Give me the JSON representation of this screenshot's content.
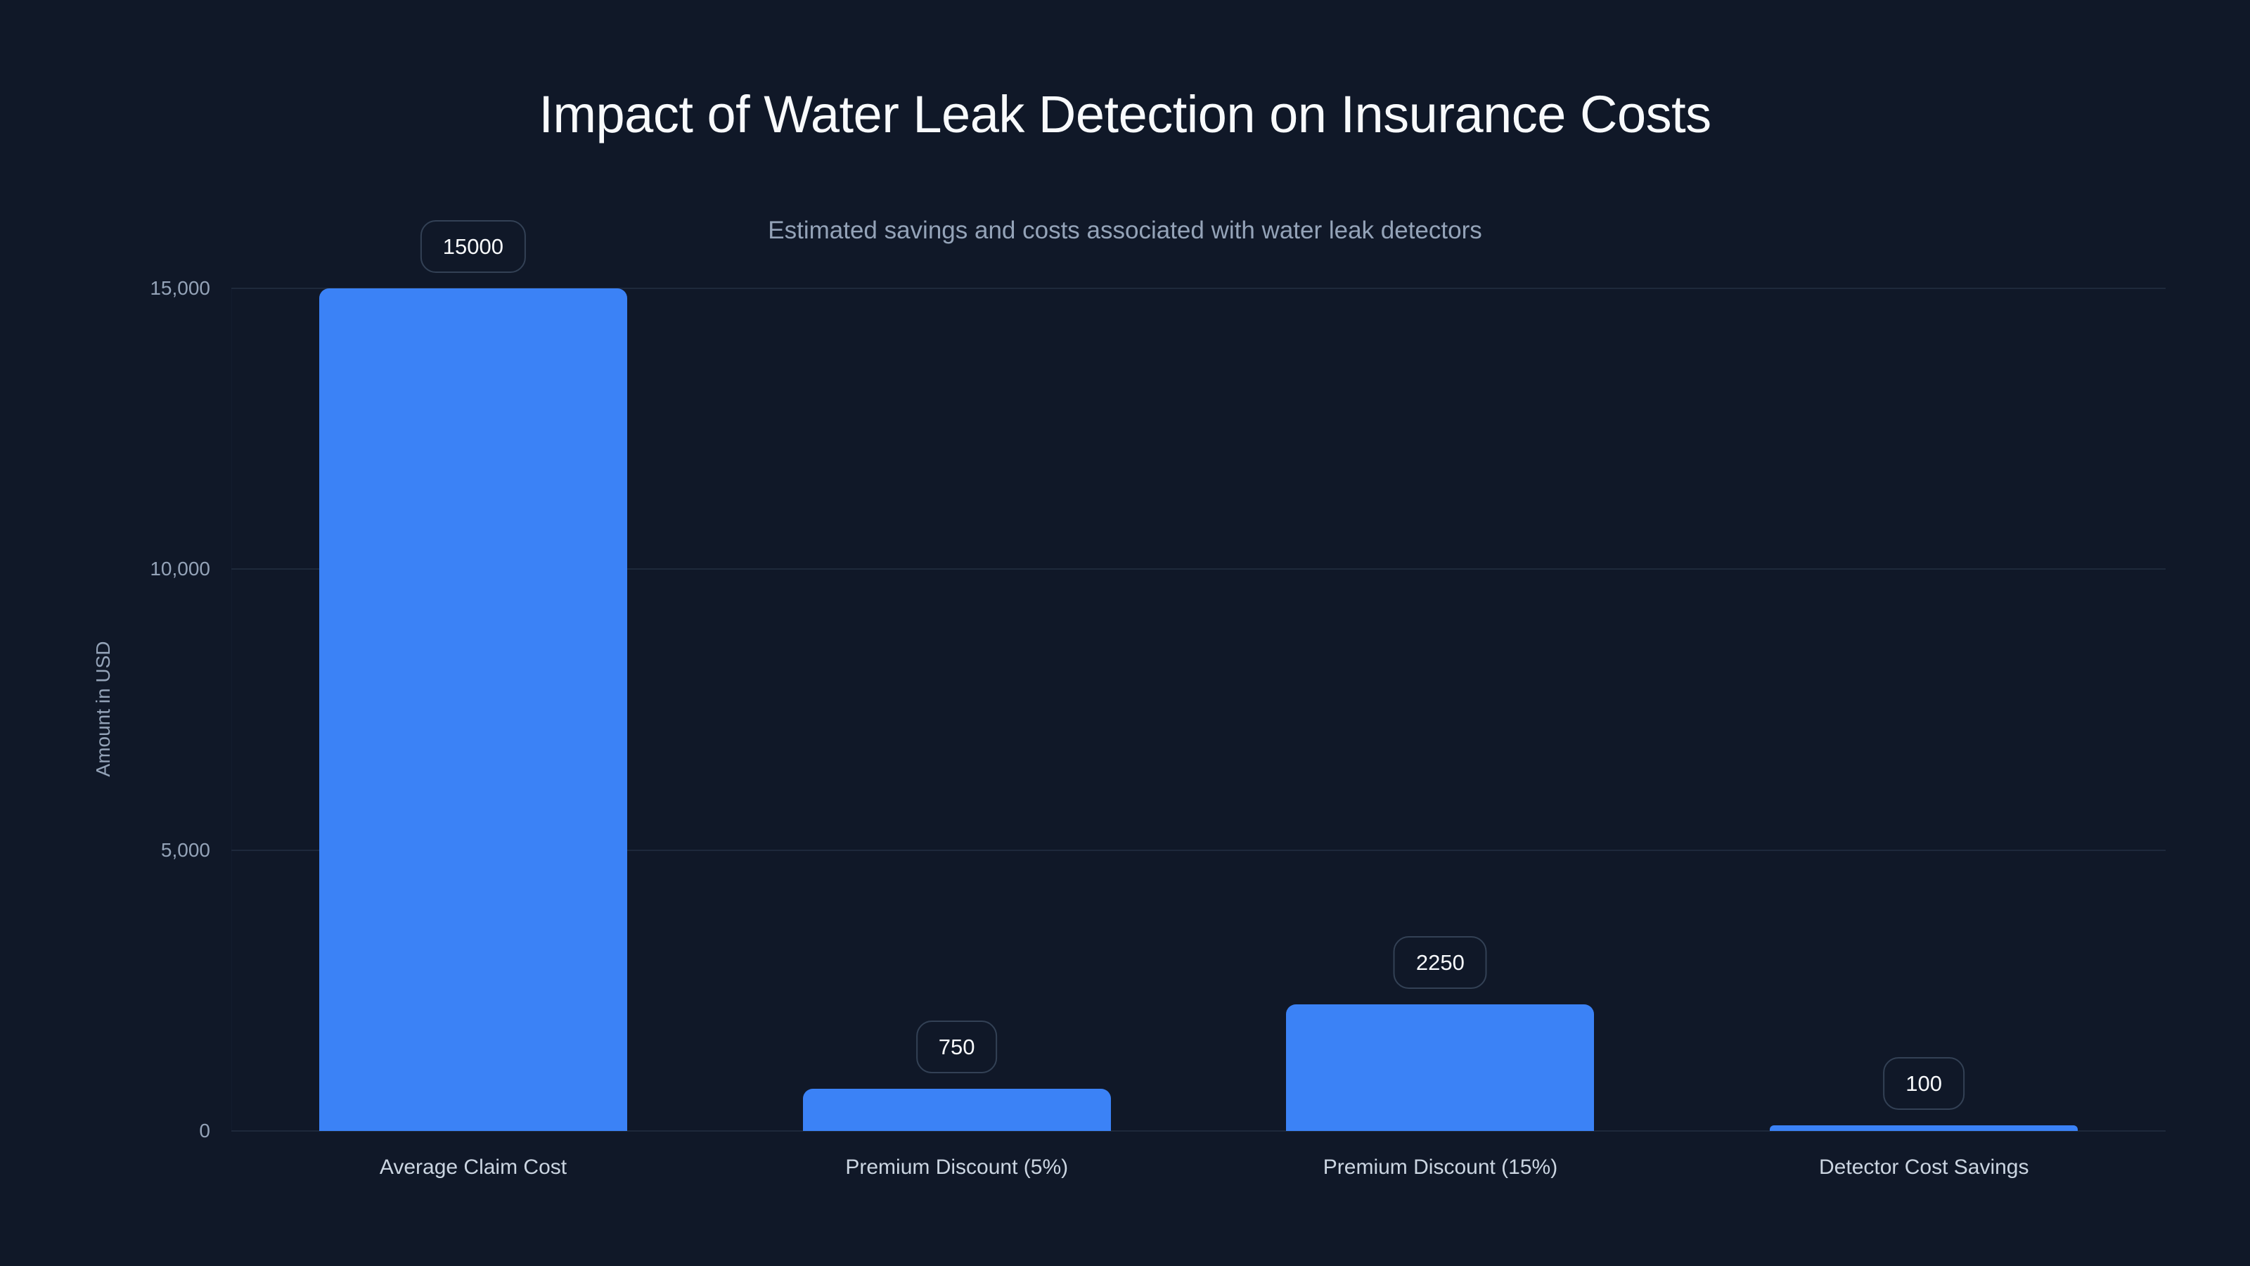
{
  "header": {
    "title": "Impact of Water Leak Detection on Insurance Costs",
    "subtitle": "Estimated savings and costs associated with water leak detectors"
  },
  "y_axis": {
    "title": "Amount in USD",
    "ticks": [
      "0",
      "5,000",
      "10,000",
      "15,000"
    ]
  },
  "bars": [
    {
      "label": "Average Claim Cost",
      "value": 15000,
      "value_label": "15000"
    },
    {
      "label": "Premium Discount (5%)",
      "value": 750,
      "value_label": "750"
    },
    {
      "label": "Premium Discount (15%)",
      "value": 2250,
      "value_label": "2250"
    },
    {
      "label": "Detector Cost Savings",
      "value": 100,
      "value_label": "100"
    }
  ],
  "colors": {
    "background": "#101828",
    "bar": "#3b82f6",
    "gridline": "#1e293b",
    "title": "#f8fafc",
    "subtitle": "#94a3b8",
    "axis_text": "#94a3b8",
    "category_text": "#cbd5e1",
    "pill_border": "#334155"
  },
  "chart_data": {
    "type": "bar",
    "title": "Impact of Water Leak Detection on Insurance Costs",
    "subtitle": "Estimated savings and costs associated with water leak detectors",
    "categories": [
      "Average Claim Cost",
      "Premium Discount (5%)",
      "Premium Discount (15%)",
      "Detector Cost Savings"
    ],
    "values": [
      15000,
      750,
      2250,
      100
    ],
    "xlabel": "",
    "ylabel": "Amount in USD",
    "ylim": [
      0,
      15000
    ],
    "yticks": [
      0,
      5000,
      10000,
      15000
    ],
    "grid": "horizontal",
    "data_labels": true,
    "legend": "none"
  }
}
